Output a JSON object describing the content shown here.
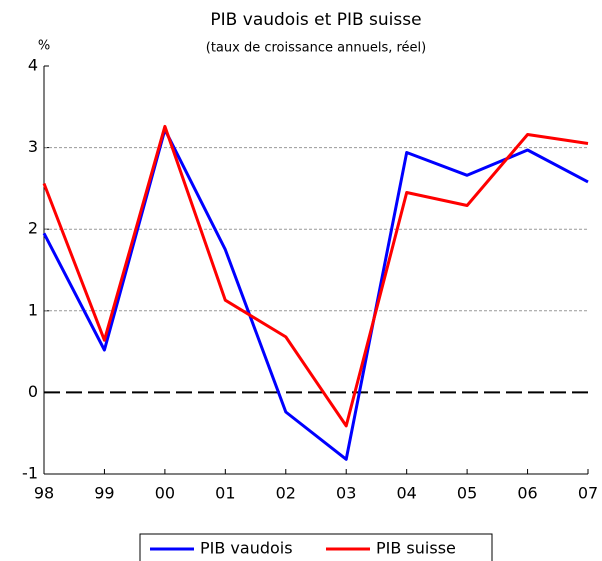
{
  "chart_data": {
    "type": "line",
    "title": "PIB vaudois et PIB suisse",
    "subtitle": "(taux de croissance annuels, réel)",
    "y_unit": "%",
    "categories": [
      "98",
      "99",
      "00",
      "01",
      "02",
      "03",
      "04",
      "05",
      "06",
      "07"
    ],
    "series": [
      {
        "name": "PIB vaudois",
        "color": "#0000ff",
        "values": [
          1.95,
          0.52,
          3.22,
          1.75,
          -0.24,
          -0.82,
          2.94,
          2.66,
          2.97,
          2.58
        ]
      },
      {
        "name": "PIB suisse",
        "color": "#ff0000",
        "values": [
          2.56,
          0.64,
          3.26,
          1.13,
          0.68,
          -0.41,
          2.45,
          2.29,
          3.16,
          3.05
        ]
      }
    ],
    "ylim": [
      -1,
      4
    ],
    "yticks": [
      -1,
      0,
      1,
      2,
      3,
      4
    ],
    "grid": true,
    "legend": "bottom"
  }
}
